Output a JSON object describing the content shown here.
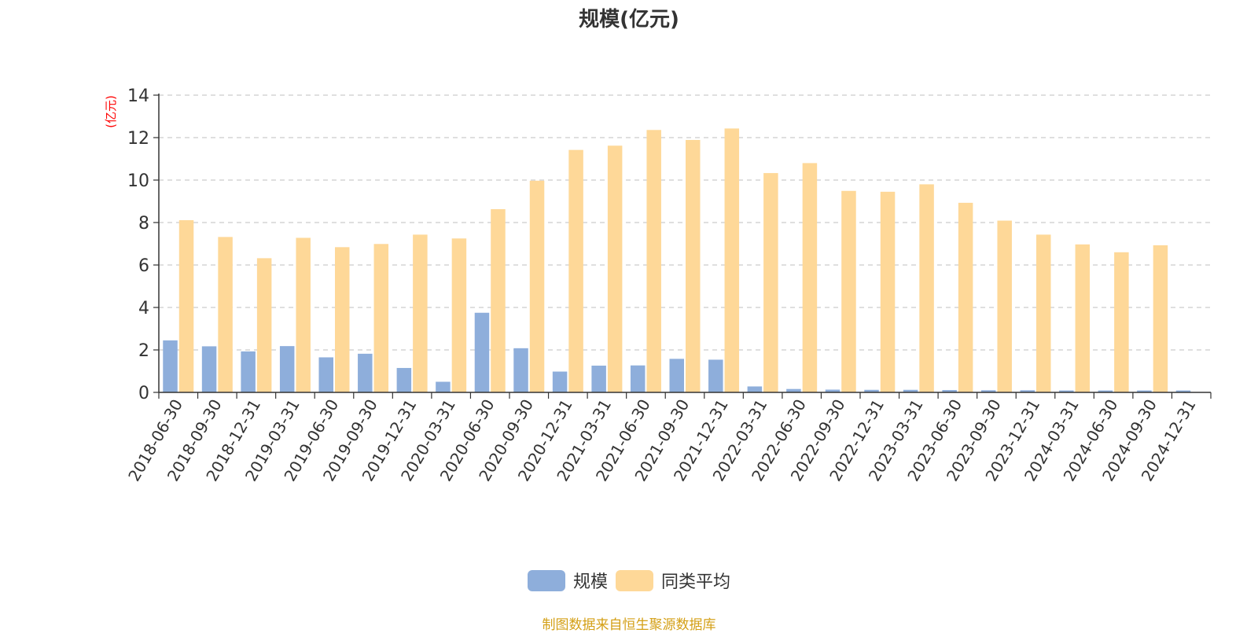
{
  "chart_data": {
    "type": "bar",
    "title": "规模(亿元)",
    "ylabel": "(亿元)",
    "xlabel": "",
    "ylim": [
      0,
      14
    ],
    "yticks": [
      0,
      2,
      4,
      6,
      8,
      10,
      12,
      14
    ],
    "grid": true,
    "legend_position": "bottom-center",
    "categories": [
      "2018-06-30",
      "2018-09-30",
      "2018-12-31",
      "2019-03-31",
      "2019-06-30",
      "2019-09-30",
      "2019-12-31",
      "2020-03-31",
      "2020-06-30",
      "2020-09-30",
      "2020-12-31",
      "2021-03-31",
      "2021-06-30",
      "2021-09-30",
      "2021-12-31",
      "2022-03-31",
      "2022-06-30",
      "2022-09-30",
      "2022-12-31",
      "2023-03-31",
      "2023-06-30",
      "2023-09-30",
      "2023-12-31",
      "2024-03-31",
      "2024-06-30",
      "2024-09-30",
      "2024-12-31"
    ],
    "series": [
      {
        "name": "规模",
        "color": "#8eaedb",
        "values": [
          2.45,
          2.17,
          1.93,
          2.18,
          1.65,
          1.82,
          1.15,
          0.5,
          3.75,
          2.08,
          0.98,
          1.26,
          1.27,
          1.58,
          1.54,
          0.28,
          0.16,
          0.13,
          0.12,
          0.12,
          0.11,
          0.1,
          0.1,
          0.09,
          0.09,
          0.09,
          0.09
        ]
      },
      {
        "name": "同类平均",
        "color": "#fed898",
        "values": [
          8.11,
          7.32,
          6.32,
          7.28,
          6.84,
          6.99,
          7.43,
          7.25,
          8.63,
          9.97,
          11.42,
          11.62,
          12.36,
          11.89,
          12.43,
          10.33,
          10.8,
          9.49,
          9.45,
          9.8,
          8.93,
          8.09,
          7.43,
          6.97,
          6.6,
          6.93,
          null
        ]
      }
    ]
  },
  "source_text": "制图数据来自恒生聚源数据库",
  "colors": {
    "title": "#333333",
    "axis": "#333333",
    "grid": "#cccccc",
    "ylabel": "#ff0000",
    "source": "#d4a017"
  }
}
